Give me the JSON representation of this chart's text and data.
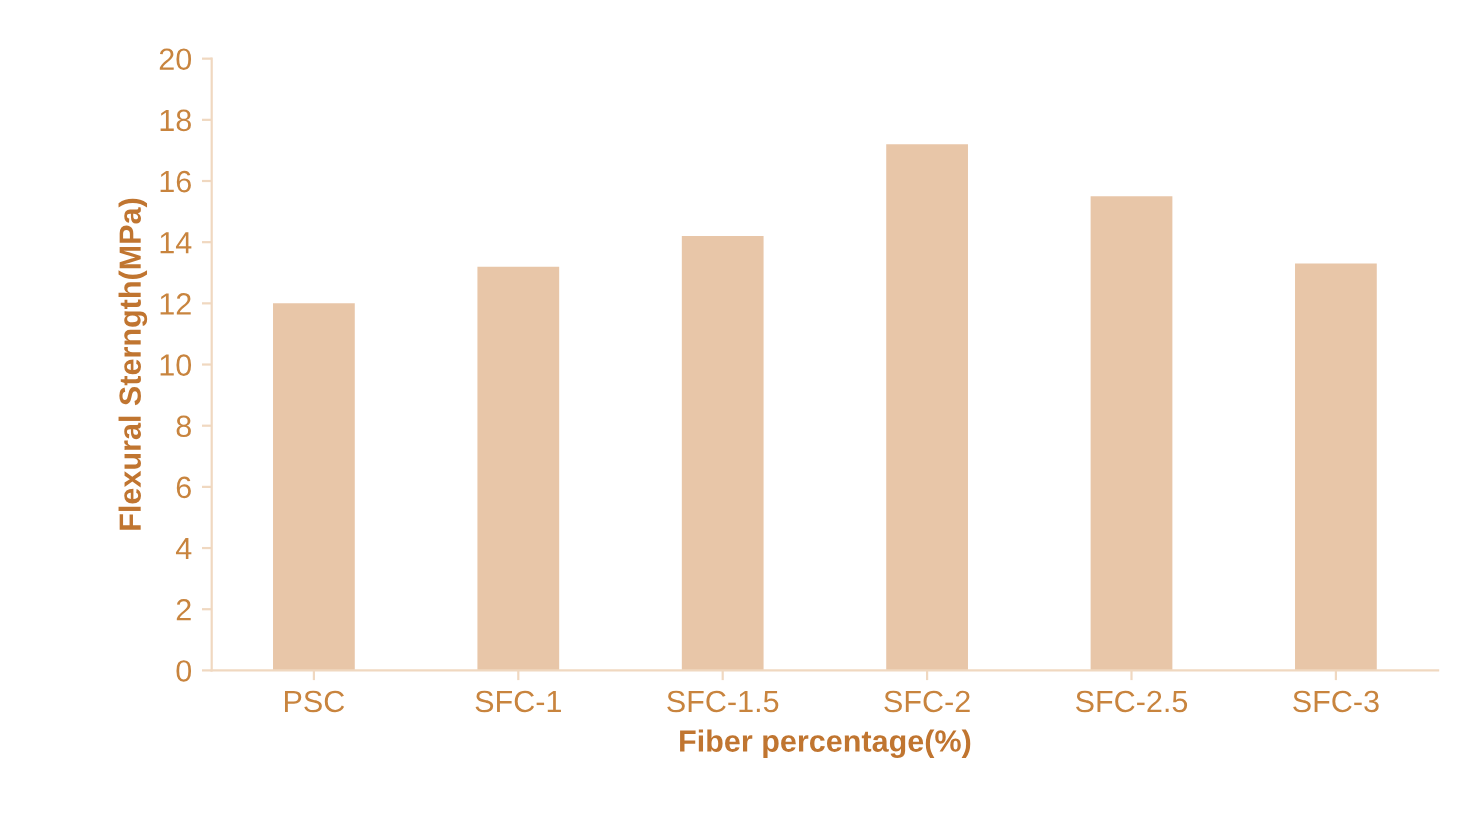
{
  "chart_data": {
    "type": "bar",
    "xlabel": "Fiber percentage(%)",
    "ylabel": "Flexural Sterngth(MPa)",
    "categories": [
      "PSC",
      "SFC-1",
      "SFC-1.5",
      "SFC-2",
      "SFC-2.5",
      "SFC-3"
    ],
    "values": [
      12.0,
      13.2,
      14.2,
      17.2,
      15.5,
      13.3
    ],
    "color": "#e8c6a8",
    "ylim": [
      0,
      20
    ],
    "yticks": [
      0,
      2,
      4,
      6,
      8,
      10,
      12,
      14,
      16,
      18,
      20
    ],
    "grid": false,
    "legend": false
  }
}
